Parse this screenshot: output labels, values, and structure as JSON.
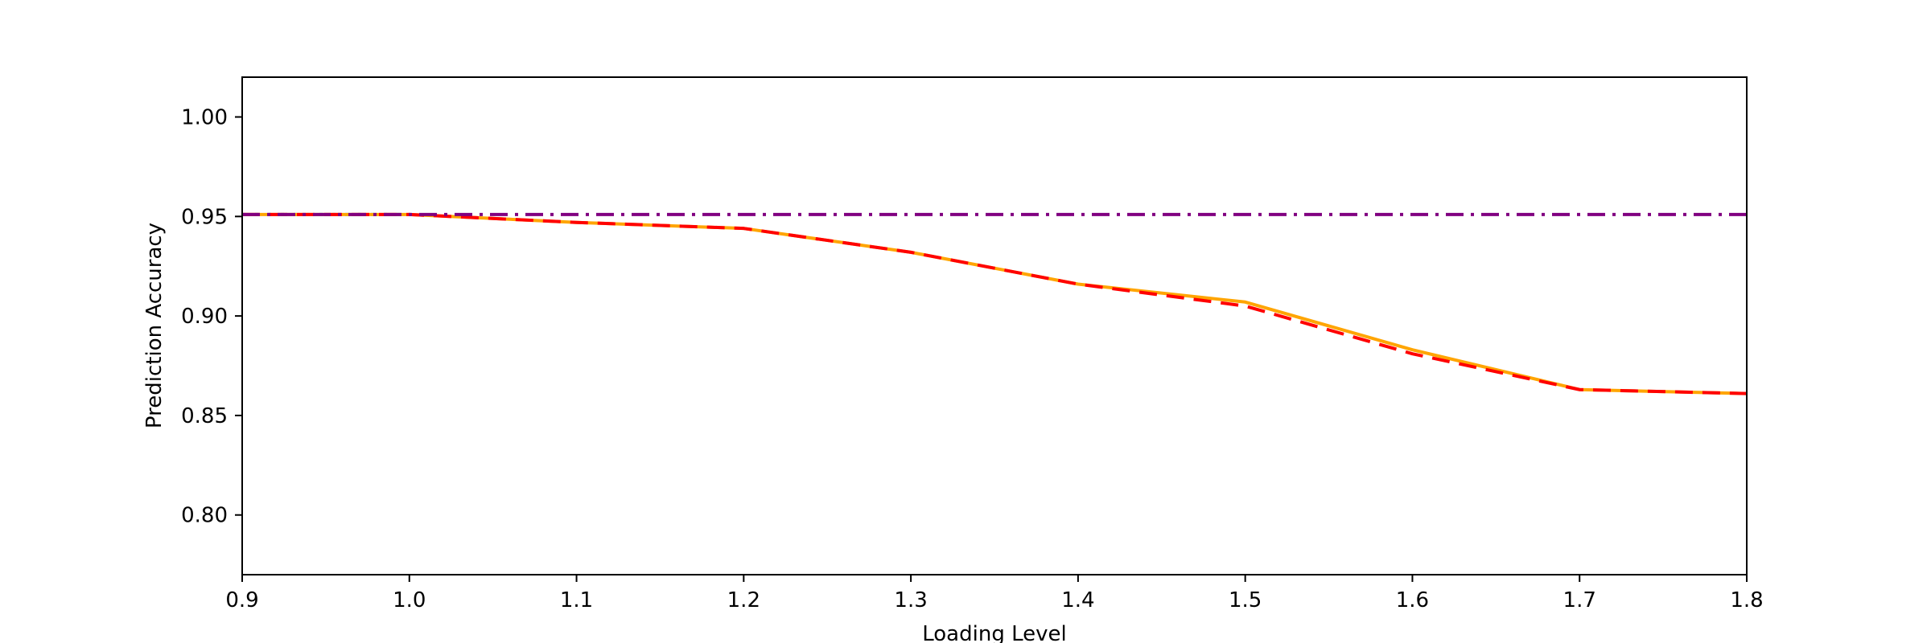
{
  "chart_data": {
    "type": "line",
    "title": "",
    "xlabel": "Loading Level",
    "ylabel": "Prediction Accuracy",
    "xlim": [
      0.9,
      1.8
    ],
    "ylim": [
      0.77,
      1.02
    ],
    "x_ticks": [
      "0.9",
      "1.0",
      "1.1",
      "1.2",
      "1.3",
      "1.4",
      "1.5",
      "1.6",
      "1.7",
      "1.8"
    ],
    "y_ticks": [
      "0.80",
      "0.85",
      "0.90",
      "0.95",
      "1.00"
    ],
    "grid": false,
    "series": [
      {
        "color": "#00bfff",
        "style": "dotted",
        "x": [
          0.9,
          1.0
        ],
        "y": [
          0.951,
          0.951
        ]
      },
      {
        "color": "#ffa500",
        "style": "solid",
        "x": [
          0.9,
          1.0,
          1.1,
          1.2,
          1.3,
          1.4,
          1.5,
          1.6,
          1.7,
          1.8
        ],
        "y": [
          0.951,
          0.951,
          0.947,
          0.944,
          0.932,
          0.916,
          0.907,
          0.883,
          0.863,
          0.861
        ]
      },
      {
        "color": "#ff0000",
        "style": "dashed",
        "x": [
          0.9,
          1.0,
          1.1,
          1.2,
          1.3,
          1.4,
          1.5,
          1.6,
          1.7,
          1.8
        ],
        "y": [
          0.951,
          0.951,
          0.947,
          0.944,
          0.932,
          0.916,
          0.905,
          0.881,
          0.863,
          0.861
        ]
      },
      {
        "color": "#800080",
        "style": "dashdot",
        "x": [
          0.9,
          1.8
        ],
        "y": [
          0.951,
          0.951
        ]
      }
    ]
  }
}
